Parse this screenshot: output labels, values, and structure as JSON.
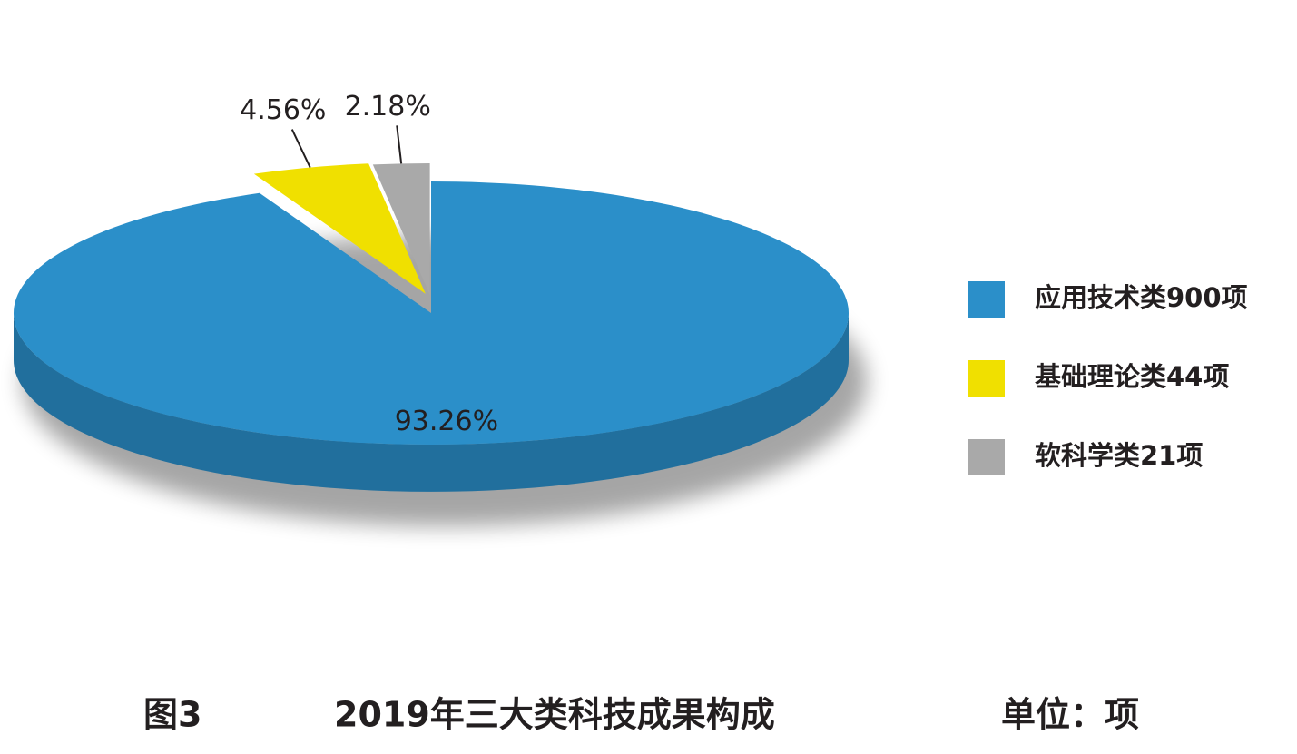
{
  "chart_data": {
    "type": "pie3d",
    "categories": [
      "应用技术类900项",
      "基础理论类44项",
      "软科学类21项"
    ],
    "values": [
      93.26,
      4.56,
      2.18
    ],
    "value_labels": [
      "93.26%",
      "4.56%",
      "2.18%"
    ],
    "colors": [
      "#2b8fc9",
      "#f0e000",
      "#a9a9a9"
    ],
    "legend": "right",
    "figure_label": "图3",
    "title": "2019年三大类科技成果构成",
    "unit": "单位：项"
  }
}
